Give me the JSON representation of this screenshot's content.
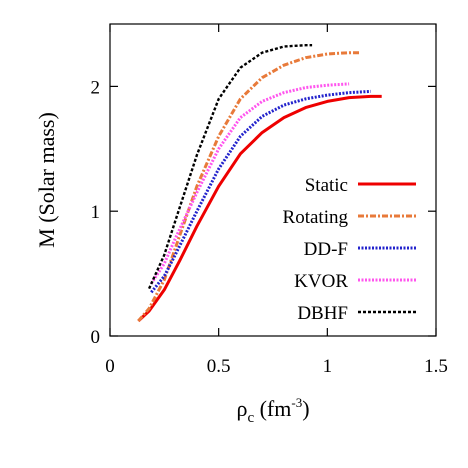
{
  "chart_data": {
    "type": "line",
    "xlabel": {
      "base": "ρ",
      "sub": "c",
      "unit": " (fm",
      "sup": "-3",
      "close": ")"
    },
    "ylabel": "M (Solar mass)",
    "xlim": [
      0,
      1.5
    ],
    "ylim": [
      0,
      2.5
    ],
    "xticks": [
      0,
      0.5,
      1,
      1.5
    ],
    "xtick_labels": [
      "0",
      "0.5",
      "1",
      "1.5"
    ],
    "yticks": [
      0,
      1,
      2
    ],
    "ytick_labels": [
      "0",
      "1",
      "2"
    ],
    "legend_position": "bottom-right",
    "series": [
      {
        "name": "Static",
        "color": "#ee0000",
        "style": "solid",
        "x": [
          0.13,
          0.18,
          0.25,
          0.32,
          0.4,
          0.5,
          0.6,
          0.7,
          0.8,
          0.9,
          1.0,
          1.1,
          1.2,
          1.25
        ],
        "y": [
          0.12,
          0.2,
          0.37,
          0.6,
          0.88,
          1.2,
          1.46,
          1.63,
          1.75,
          1.83,
          1.88,
          1.91,
          1.92,
          1.92
        ]
      },
      {
        "name": "Rotating",
        "color": "#e87a3a",
        "style": "dashdot",
        "x": [
          0.13,
          0.18,
          0.25,
          0.32,
          0.4,
          0.5,
          0.6,
          0.7,
          0.8,
          0.9,
          1.0,
          1.1,
          1.15
        ],
        "y": [
          0.12,
          0.22,
          0.45,
          0.8,
          1.2,
          1.6,
          1.9,
          2.07,
          2.17,
          2.23,
          2.26,
          2.27,
          2.27
        ]
      },
      {
        "name": "DD-F",
        "color": "#2222cc",
        "style": "dotted",
        "x": [
          0.19,
          0.25,
          0.3,
          0.4,
          0.5,
          0.6,
          0.7,
          0.8,
          0.9,
          1.0,
          1.1,
          1.2
        ],
        "y": [
          0.35,
          0.48,
          0.65,
          1.0,
          1.34,
          1.6,
          1.76,
          1.85,
          1.9,
          1.93,
          1.95,
          1.96
        ]
      },
      {
        "name": "KVOR",
        "color": "#ff55ee",
        "style": "dotted",
        "x": [
          0.19,
          0.25,
          0.3,
          0.4,
          0.5,
          0.6,
          0.7,
          0.8,
          0.9,
          1.0,
          1.1
        ],
        "y": [
          0.42,
          0.58,
          0.78,
          1.15,
          1.5,
          1.75,
          1.88,
          1.95,
          1.99,
          2.01,
          2.02
        ]
      },
      {
        "name": "DBHF",
        "color": "#000000",
        "style": "dashed",
        "x": [
          0.18,
          0.25,
          0.3,
          0.4,
          0.5,
          0.6,
          0.7,
          0.8,
          0.9,
          0.93
        ],
        "y": [
          0.38,
          0.65,
          0.92,
          1.45,
          1.9,
          2.15,
          2.27,
          2.32,
          2.33,
          2.33
        ]
      }
    ]
  }
}
